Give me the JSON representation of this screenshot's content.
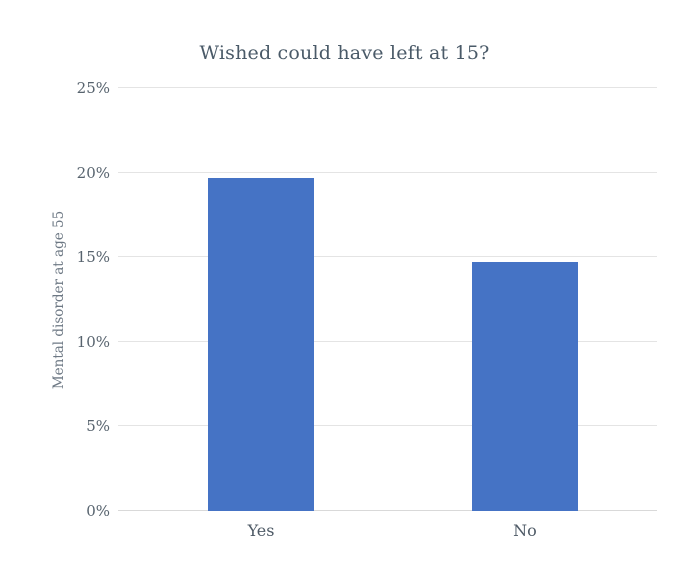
{
  "colors": {
    "bar": "#4573c5",
    "title_text": "#4a5a68",
    "tick_text": "#57636e",
    "ylabel_text": "#6d7884",
    "xlabel_text": "#4e5a66",
    "gridline": "#e4e4e4"
  },
  "chart_data": {
    "type": "bar",
    "title": "Wished could have left at 15?",
    "categories": [
      "Yes",
      "No"
    ],
    "values": [
      19.7,
      14.7
    ],
    "xlabel": "",
    "ylabel": "Mental disorder at age 55",
    "ylim": [
      0,
      25
    ],
    "ytick_step": 5,
    "yticks": [
      "0%",
      "5%",
      "10%",
      "15%",
      "20%",
      "25%"
    ],
    "grid": true,
    "legend": false
  }
}
